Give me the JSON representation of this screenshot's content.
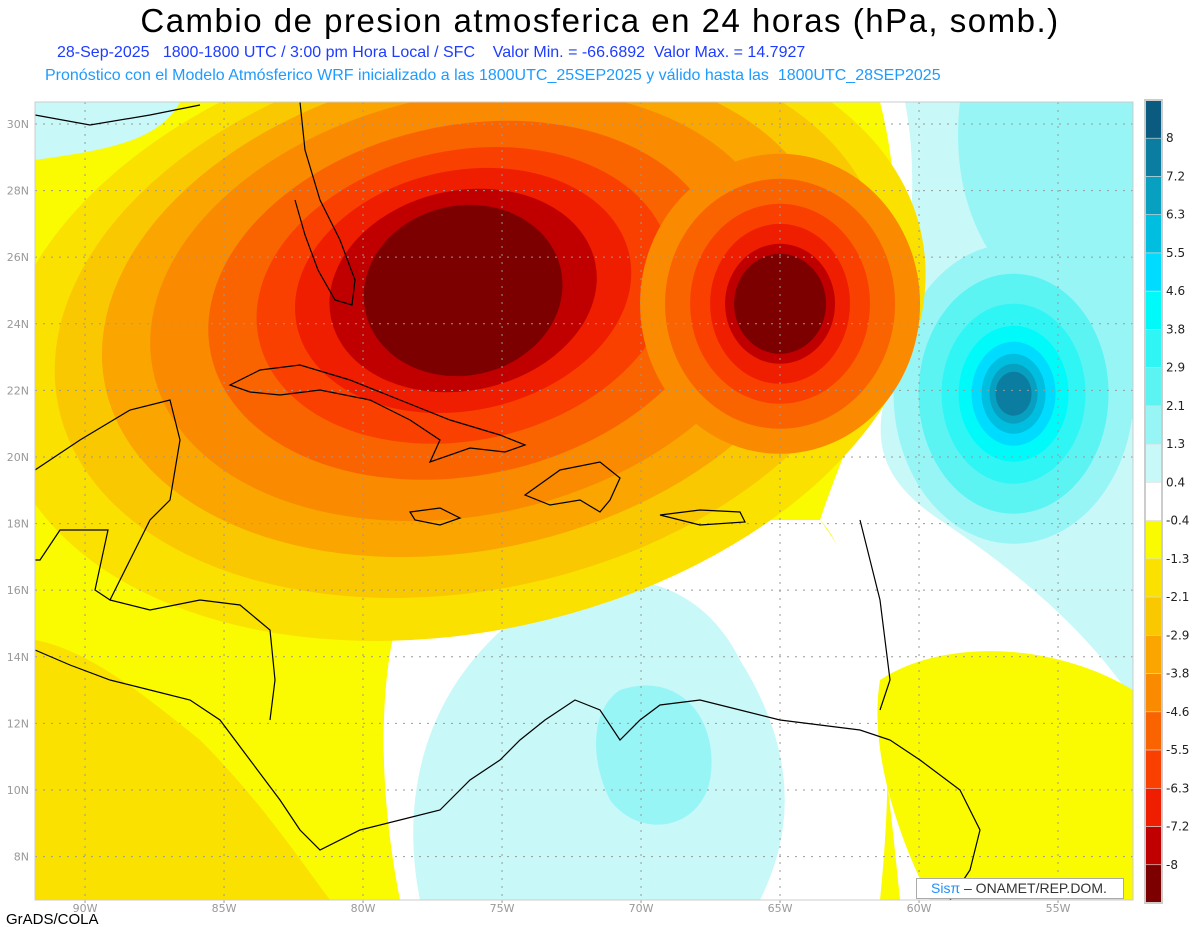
{
  "title": "Cambio de presion atmosferica en 24 horas (hPa, somb.)",
  "subtitle1": "28-Sep-2025   1800-1800 UTC / 3:00 pm Hora Local / SFC    Valor Min. = -66.6892  Valor Max. = 14.7927",
  "subtitle2": "Pronóstico con el Modelo Atmósferico WRF inicializado a las 1800UTC_25SEP2025 y válido hasta las  1800UTC_28SEP2025",
  "lon_labels": [
    "90W",
    "85W",
    "80W",
    "75W",
    "70W",
    "65W",
    "60W",
    "55W"
  ],
  "lat_labels": [
    "30N",
    "28N",
    "26N",
    "24N",
    "22N",
    "20N",
    "18N",
    "16N",
    "14N",
    "12N",
    "10N",
    "8N"
  ],
  "colorbar": {
    "labels": [
      "8",
      "7.2",
      "6.3",
      "5.5",
      "4.6",
      "3.8",
      "2.9",
      "2.1",
      "1.3",
      "0.4",
      "-0.4",
      "-1.3",
      "-2.1",
      "-2.9",
      "-3.8",
      "-4.6",
      "-5.5",
      "-6.3",
      "-7.2",
      "-8"
    ],
    "colors": [
      "#0b5a80",
      "#0a7da0",
      "#07a0c0",
      "#00bee0",
      "#00dcff",
      "#00fafa",
      "#30f5f5",
      "#5cf3f3",
      "#98f5f5",
      "#c8f8f8",
      "#ffffff",
      "#fafa00",
      "#fae100",
      "#fac800",
      "#faa500",
      "#fa8a00",
      "#fa6400",
      "#fa4000",
      "#f01e00",
      "#c00000",
      "#7d0000"
    ]
  },
  "footer_left": "GrADS/COLA",
  "credit": {
    "logo": "Sisπ",
    "text": " – ONAMET/REP.DOM."
  }
}
